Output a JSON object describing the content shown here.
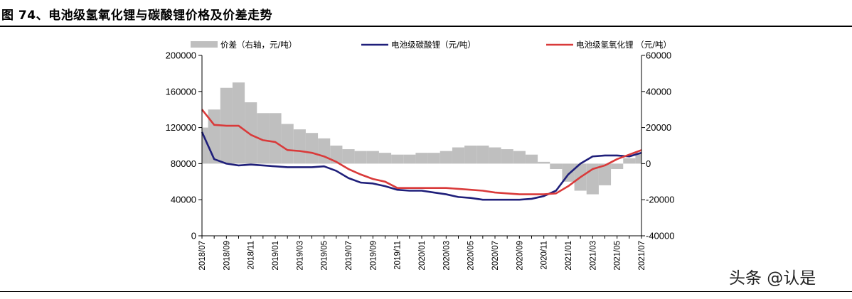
{
  "figure": {
    "title": "图 74、电池级氢氧化锂与碳酸锂价格及价差走势",
    "watermark": "头条 @认是",
    "source_text": ""
  },
  "chart_data": {
    "type": "line",
    "title": "",
    "xlabel": "",
    "ylabel": "",
    "y2label": "",
    "ylim": [
      0,
      200000
    ],
    "y2lim": [
      -40000,
      60000
    ],
    "yticks": [
      "200000",
      "160000",
      "120000",
      "80000",
      "40000",
      "0"
    ],
    "y2ticks": [
      "60000",
      "40000",
      "20000",
      "0",
      "-20000",
      "-40000"
    ],
    "xticks": [
      "2018/07",
      "2018/09",
      "2018/11",
      "2019/01",
      "2019/03",
      "2019/05",
      "2019/07",
      "2019/09",
      "2019/11",
      "2020/01",
      "2020/03",
      "2020/05",
      "2020/07",
      "2020/09",
      "2020/11",
      "2021/01",
      "2021/03",
      "2021/05",
      "2021/07"
    ],
    "legend_position": "top",
    "grid": false,
    "series": [
      {
        "name": "价差（右轴，元/吨）",
        "type": "area",
        "axis": "right",
        "color": "#bfbfbf",
        "points": [
          [
            "2018/07",
            20000
          ],
          [
            "2018/08",
            30000
          ],
          [
            "2018/09",
            42000
          ],
          [
            "2018/10",
            45000
          ],
          [
            "2018/11",
            34000
          ],
          [
            "2018/12",
            28000
          ],
          [
            "2019/01",
            28000
          ],
          [
            "2019/02",
            22000
          ],
          [
            "2019/03",
            19000
          ],
          [
            "2019/04",
            17000
          ],
          [
            "2019/05",
            14000
          ],
          [
            "2019/06",
            10000
          ],
          [
            "2019/07",
            8000
          ],
          [
            "2019/08",
            7000
          ],
          [
            "2019/09",
            7000
          ],
          [
            "2019/10",
            6000
          ],
          [
            "2019/11",
            5000
          ],
          [
            "2019/12",
            5000
          ],
          [
            "2020/01",
            6000
          ],
          [
            "2020/02",
            6000
          ],
          [
            "2020/03",
            7000
          ],
          [
            "2020/04",
            9000
          ],
          [
            "2020/05",
            10000
          ],
          [
            "2020/06",
            10000
          ],
          [
            "2020/07",
            9000
          ],
          [
            "2020/08",
            8000
          ],
          [
            "2020/09",
            7000
          ],
          [
            "2020/10",
            5000
          ],
          [
            "2020/11",
            1000
          ],
          [
            "2020/12",
            -3000
          ],
          [
            "2021/01",
            -10000
          ],
          [
            "2021/02",
            -15000
          ],
          [
            "2021/03",
            -17000
          ],
          [
            "2021/04",
            -12000
          ],
          [
            "2021/05",
            -3000
          ],
          [
            "2021/06",
            3000
          ],
          [
            "2021/07",
            6000
          ]
        ]
      },
      {
        "name": "电池级碳酸锂（元/吨）",
        "type": "line",
        "axis": "left",
        "color": "#1f1f7a",
        "points": [
          [
            "2018/07",
            115000
          ],
          [
            "2018/08",
            85000
          ],
          [
            "2018/09",
            80000
          ],
          [
            "2018/10",
            78000
          ],
          [
            "2018/11",
            79000
          ],
          [
            "2018/12",
            78000
          ],
          [
            "2019/01",
            77000
          ],
          [
            "2019/02",
            76000
          ],
          [
            "2019/03",
            76000
          ],
          [
            "2019/04",
            76000
          ],
          [
            "2019/05",
            77000
          ],
          [
            "2019/06",
            72000
          ],
          [
            "2019/07",
            64000
          ],
          [
            "2019/08",
            59000
          ],
          [
            "2019/09",
            58000
          ],
          [
            "2019/10",
            55000
          ],
          [
            "2019/11",
            51000
          ],
          [
            "2019/12",
            50000
          ],
          [
            "2020/01",
            50000
          ],
          [
            "2020/02",
            48000
          ],
          [
            "2020/03",
            46000
          ],
          [
            "2020/04",
            43000
          ],
          [
            "2020/05",
            42000
          ],
          [
            "2020/06",
            40000
          ],
          [
            "2020/07",
            40000
          ],
          [
            "2020/08",
            40000
          ],
          [
            "2020/09",
            40000
          ],
          [
            "2020/10",
            41000
          ],
          [
            "2020/11",
            44000
          ],
          [
            "2020/12",
            50000
          ],
          [
            "2021/01",
            68000
          ],
          [
            "2021/02",
            80000
          ],
          [
            "2021/03",
            88000
          ],
          [
            "2021/04",
            89000
          ],
          [
            "2021/05",
            89000
          ],
          [
            "2021/06",
            88000
          ],
          [
            "2021/07",
            92000
          ]
        ]
      },
      {
        "name": "电池级氢氧化锂 （元/吨）",
        "type": "line",
        "axis": "left",
        "color": "#d93a3a",
        "points": [
          [
            "2018/07",
            140000
          ],
          [
            "2018/08",
            123000
          ],
          [
            "2018/09",
            122000
          ],
          [
            "2018/10",
            122000
          ],
          [
            "2018/11",
            112000
          ],
          [
            "2018/12",
            106000
          ],
          [
            "2019/01",
            104000
          ],
          [
            "2019/02",
            95000
          ],
          [
            "2019/03",
            94000
          ],
          [
            "2019/04",
            92000
          ],
          [
            "2019/05",
            88000
          ],
          [
            "2019/06",
            82000
          ],
          [
            "2019/07",
            74000
          ],
          [
            "2019/08",
            68000
          ],
          [
            "2019/09",
            63000
          ],
          [
            "2019/10",
            60000
          ],
          [
            "2019/11",
            53000
          ],
          [
            "2019/12",
            53000
          ],
          [
            "2020/01",
            53000
          ],
          [
            "2020/02",
            53000
          ],
          [
            "2020/03",
            53000
          ],
          [
            "2020/04",
            52000
          ],
          [
            "2020/05",
            51000
          ],
          [
            "2020/06",
            50000
          ],
          [
            "2020/07",
            48000
          ],
          [
            "2020/08",
            47000
          ],
          [
            "2020/09",
            46000
          ],
          [
            "2020/10",
            46000
          ],
          [
            "2020/11",
            46000
          ],
          [
            "2020/12",
            47000
          ],
          [
            "2021/01",
            55000
          ],
          [
            "2021/02",
            65000
          ],
          [
            "2021/03",
            74000
          ],
          [
            "2021/04",
            78000
          ],
          [
            "2021/05",
            85000
          ],
          [
            "2021/06",
            90000
          ],
          [
            "2021/07",
            95000
          ]
        ]
      }
    ]
  }
}
